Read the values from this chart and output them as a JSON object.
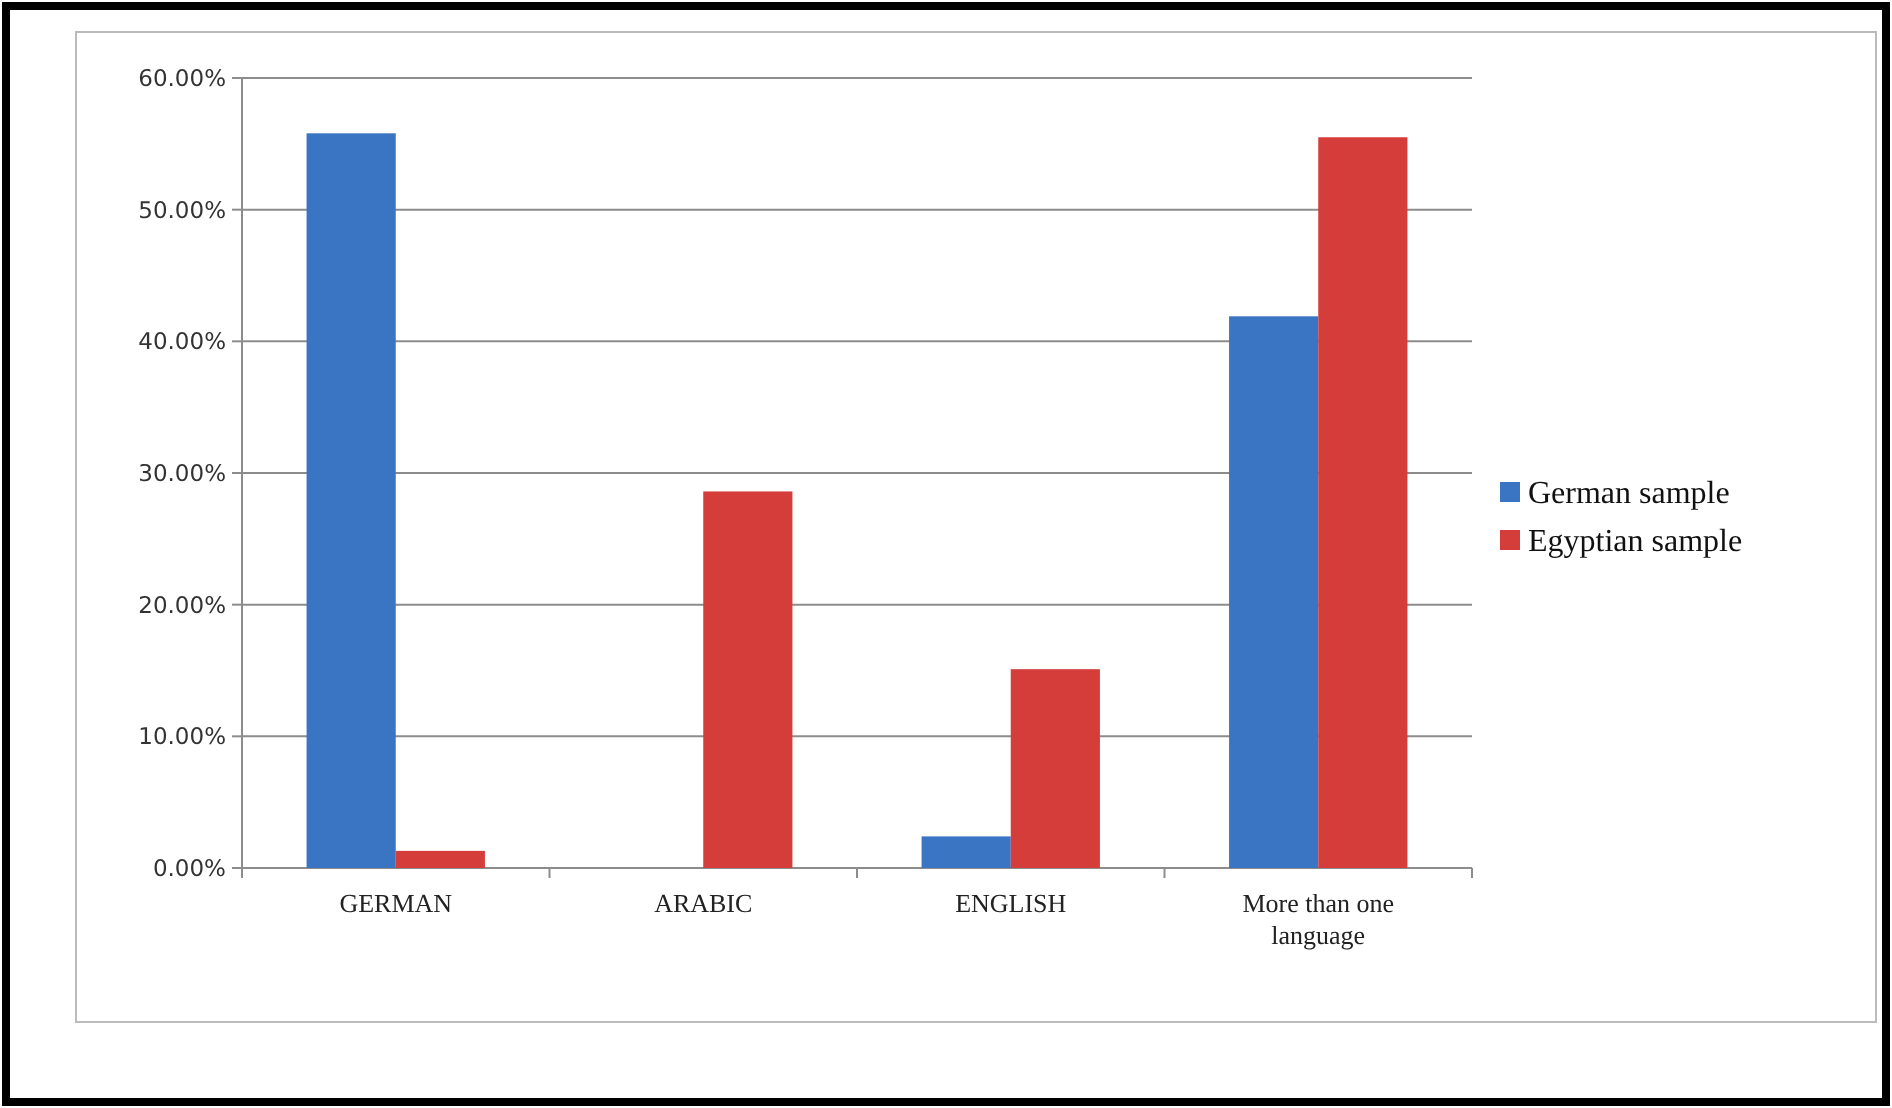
{
  "chart_data": {
    "type": "bar",
    "categories": [
      "GERMAN",
      "ARABIC",
      "ENGLISH",
      "More than one language"
    ],
    "series": [
      {
        "name": "German sample",
        "color": "#3a75c4",
        "values": [
          55.8,
          0,
          2.4,
          41.9
        ]
      },
      {
        "name": "Egyptian sample",
        "color": "#d43d3a",
        "values": [
          1.3,
          28.6,
          15.1,
          55.5
        ]
      }
    ],
    "ylim": [
      0,
      60
    ],
    "yticks": [
      {
        "value": 0,
        "label": "0.00%"
      },
      {
        "value": 10,
        "label": "10.00%"
      },
      {
        "value": 20,
        "label": "20.00%"
      },
      {
        "value": 30,
        "label": "30.00%"
      },
      {
        "value": 40,
        "label": "40.00%"
      },
      {
        "value": 50,
        "label": "50.00%"
      },
      {
        "value": 60,
        "label": "60.00%"
      }
    ],
    "grid": "y",
    "legend": "right"
  }
}
